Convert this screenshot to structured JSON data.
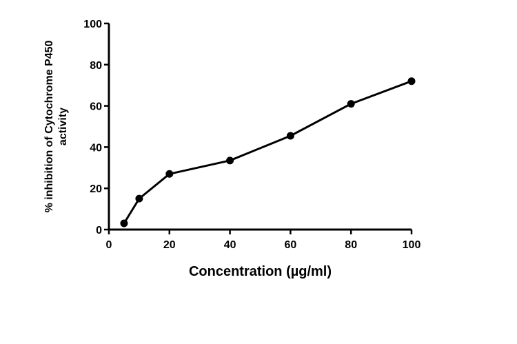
{
  "chart_data": {
    "type": "line",
    "title": "",
    "xlabel": "Concentration (µg/ml)",
    "ylabel_line1": "% inhibition of Cytochrome P450",
    "ylabel_line2": "activity",
    "xlim": [
      0,
      100
    ],
    "ylim": [
      0,
      100
    ],
    "xticks": [
      0,
      20,
      40,
      60,
      80,
      100
    ],
    "yticks": [
      0,
      20,
      40,
      60,
      80,
      100
    ],
    "grid": false,
    "series": [
      {
        "x": [
          5,
          10,
          20,
          40,
          60,
          80,
          100
        ],
        "y": [
          3,
          15,
          27,
          33.5,
          45.5,
          61,
          72
        ]
      }
    ]
  }
}
